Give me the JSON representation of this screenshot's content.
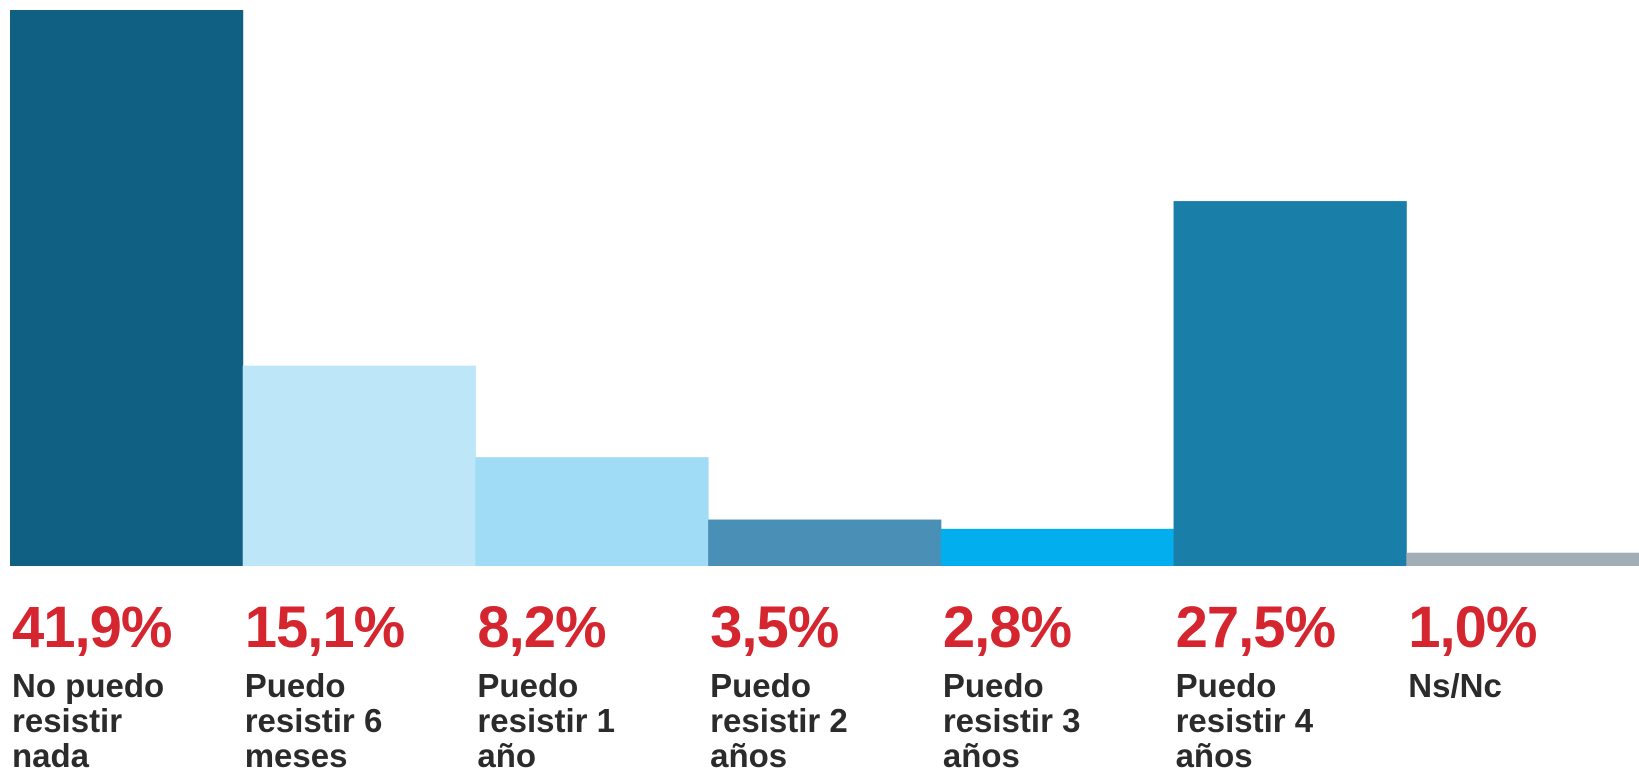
{
  "chart_data": {
    "type": "bar",
    "categories": [
      "No puedo resistir nada",
      "Puedo resistir 6 meses",
      "Puedo resistir 1 año",
      "Puedo resistir 2 años",
      "Puedo resistir 3 años",
      "Puedo resistir 4 años",
      "Ns/Nc"
    ],
    "values": [
      41.9,
      15.1,
      8.2,
      3.5,
      2.8,
      27.5,
      1.0
    ],
    "value_labels": [
      "41,9%",
      "15,1%",
      "8,2%",
      "3,5%",
      "2,8%",
      "27,5%",
      "1,0%"
    ],
    "colors": [
      "#0f6083",
      "#bde6f9",
      "#a0dcf6",
      "#4a90b6",
      "#02aeee",
      "#1a7fa8",
      "#a1aeb6"
    ]
  }
}
